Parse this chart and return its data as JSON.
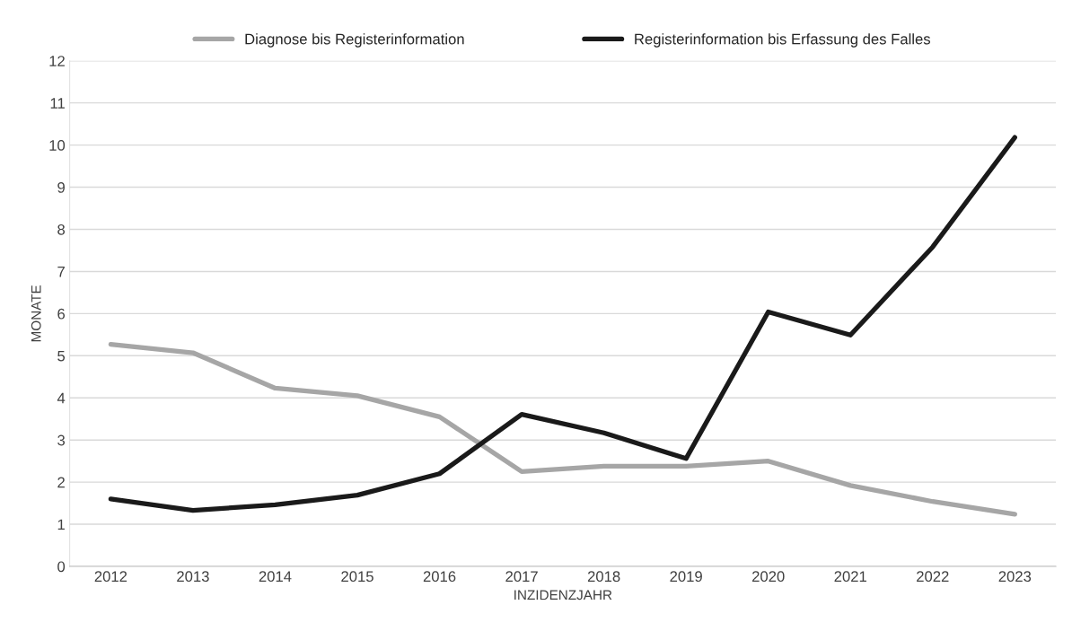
{
  "chart_data": {
    "type": "line",
    "xlabel": "INZIDENZJAHR",
    "ylabel": "MONATE",
    "categories": [
      "2012",
      "2013",
      "2014",
      "2015",
      "2016",
      "2017",
      "2018",
      "2019",
      "2020",
      "2021",
      "2022",
      "2023"
    ],
    "series": [
      {
        "name": "Diagnose bis Registerinformation",
        "color": "#a6a6a6",
        "values": [
          5.27,
          5.07,
          4.23,
          4.05,
          3.55,
          2.25,
          2.38,
          2.38,
          2.5,
          1.92,
          1.54,
          1.24
        ]
      },
      {
        "name": "Registerinformation bis Erfassung des Falles",
        "color": "#1a1a1a",
        "values": [
          1.6,
          1.33,
          1.46,
          1.69,
          2.2,
          3.61,
          3.17,
          2.56,
          6.04,
          5.49,
          7.58,
          10.18
        ]
      }
    ],
    "ylim": [
      0,
      12
    ],
    "yticks": [
      0,
      1,
      2,
      3,
      4,
      5,
      6,
      7,
      8,
      9,
      10,
      11,
      12
    ],
    "grid": "y",
    "legend": "top",
    "marker": "none",
    "line_style": "solid"
  }
}
